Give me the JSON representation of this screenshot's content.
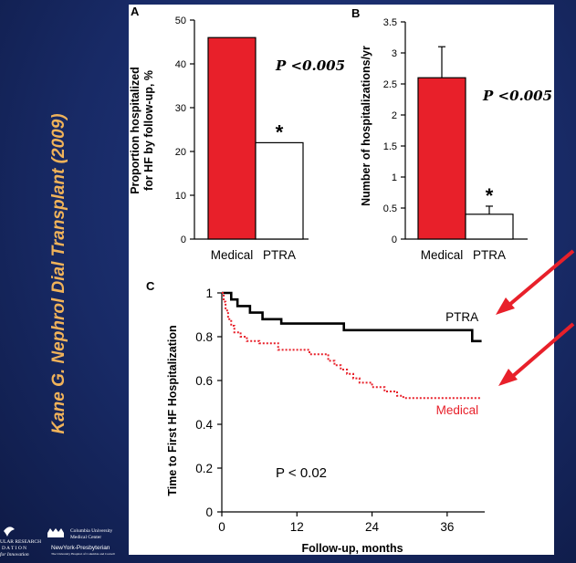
{
  "slide": {
    "citation": "Kane G.  Nephrol Dial Transplant (2009)",
    "logos": {
      "left_line1": "ULAR RESEARCH",
      "left_line2": "D A T I O N",
      "left_line3": "for Innovation",
      "right_line1": "Columbia University",
      "right_line2": "Medical Center",
      "right_line3": "NewYork-Presbyterian",
      "right_line4": "The University Hospital of Columbia and Cornell"
    }
  },
  "annotation_colors": {
    "arrow": "#e8202a",
    "bar_medical": "#e8202a",
    "bar_ptra": "#ffffff",
    "curve_medical": "#e8202a",
    "curve_ptra": "#000000"
  },
  "chart_data": [
    {
      "type": "bar",
      "panel": "A",
      "categories": [
        "Medical",
        "PTRA"
      ],
      "values": [
        46,
        22
      ],
      "ylabel_line1": "Proportion hospitalized",
      "ylabel_line2": "for HF by follow-up, %",
      "ylim": [
        0,
        50
      ],
      "yticks": [
        0,
        10,
        20,
        30,
        40,
        50
      ],
      "ytick_labels": [
        "0",
        "10",
        "20",
        "30",
        "40",
        "50"
      ],
      "annotation": "P <0.005",
      "significance_mark": "*"
    },
    {
      "type": "bar",
      "panel": "B",
      "categories": [
        "Medical",
        "PTRA"
      ],
      "values": [
        2.6,
        0.4
      ],
      "error_upper": [
        3.1,
        0.53
      ],
      "ylabel": "Number of hospitalizations/yr",
      "ylim": [
        0,
        3.5
      ],
      "yticks": [
        0,
        0.5,
        1,
        1.5,
        2,
        2.5,
        3,
        3.5
      ],
      "ytick_labels": [
        "0",
        "0.5",
        "1",
        "1.5",
        "2",
        "2.5",
        "3",
        "3.5"
      ],
      "annotation": "P <0.005",
      "significance_mark": "*"
    },
    {
      "type": "line",
      "panel": "C",
      "xlabel": "Follow-up, months",
      "ylabel": "Time to First HF Hospitalization",
      "xlim": [
        0,
        42
      ],
      "ylim": [
        0,
        1
      ],
      "xticks": [
        0,
        12,
        24,
        36
      ],
      "xtick_labels": [
        "0",
        "12",
        "24",
        "36"
      ],
      "yticks": [
        0,
        0.2,
        0.4,
        0.6,
        0.8,
        1
      ],
      "ytick_labels": [
        "0",
        "0.2",
        "0.4",
        "0.6",
        "0.8",
        "1"
      ],
      "annotation": "P < 0.02",
      "series": [
        {
          "name": "PTRA",
          "style": "solid",
          "x": [
            0,
            1.5,
            2.5,
            4.5,
            6.5,
            9.5,
            19.5,
            40,
            41.5
          ],
          "y": [
            1,
            0.97,
            0.94,
            0.91,
            0.88,
            0.86,
            0.83,
            0.78,
            0.78
          ]
        },
        {
          "name": "Medical",
          "style": "dotted",
          "x": [
            0,
            0.3,
            0.6,
            1,
            1.5,
            2,
            3,
            4,
            6,
            9,
            14,
            17,
            18,
            19,
            20,
            21,
            22,
            24,
            26,
            28,
            29,
            41.5
          ],
          "y": [
            1,
            0.96,
            0.92,
            0.88,
            0.85,
            0.82,
            0.8,
            0.78,
            0.77,
            0.74,
            0.72,
            0.69,
            0.67,
            0.65,
            0.63,
            0.61,
            0.59,
            0.57,
            0.55,
            0.53,
            0.52,
            0.52
          ]
        }
      ]
    }
  ]
}
